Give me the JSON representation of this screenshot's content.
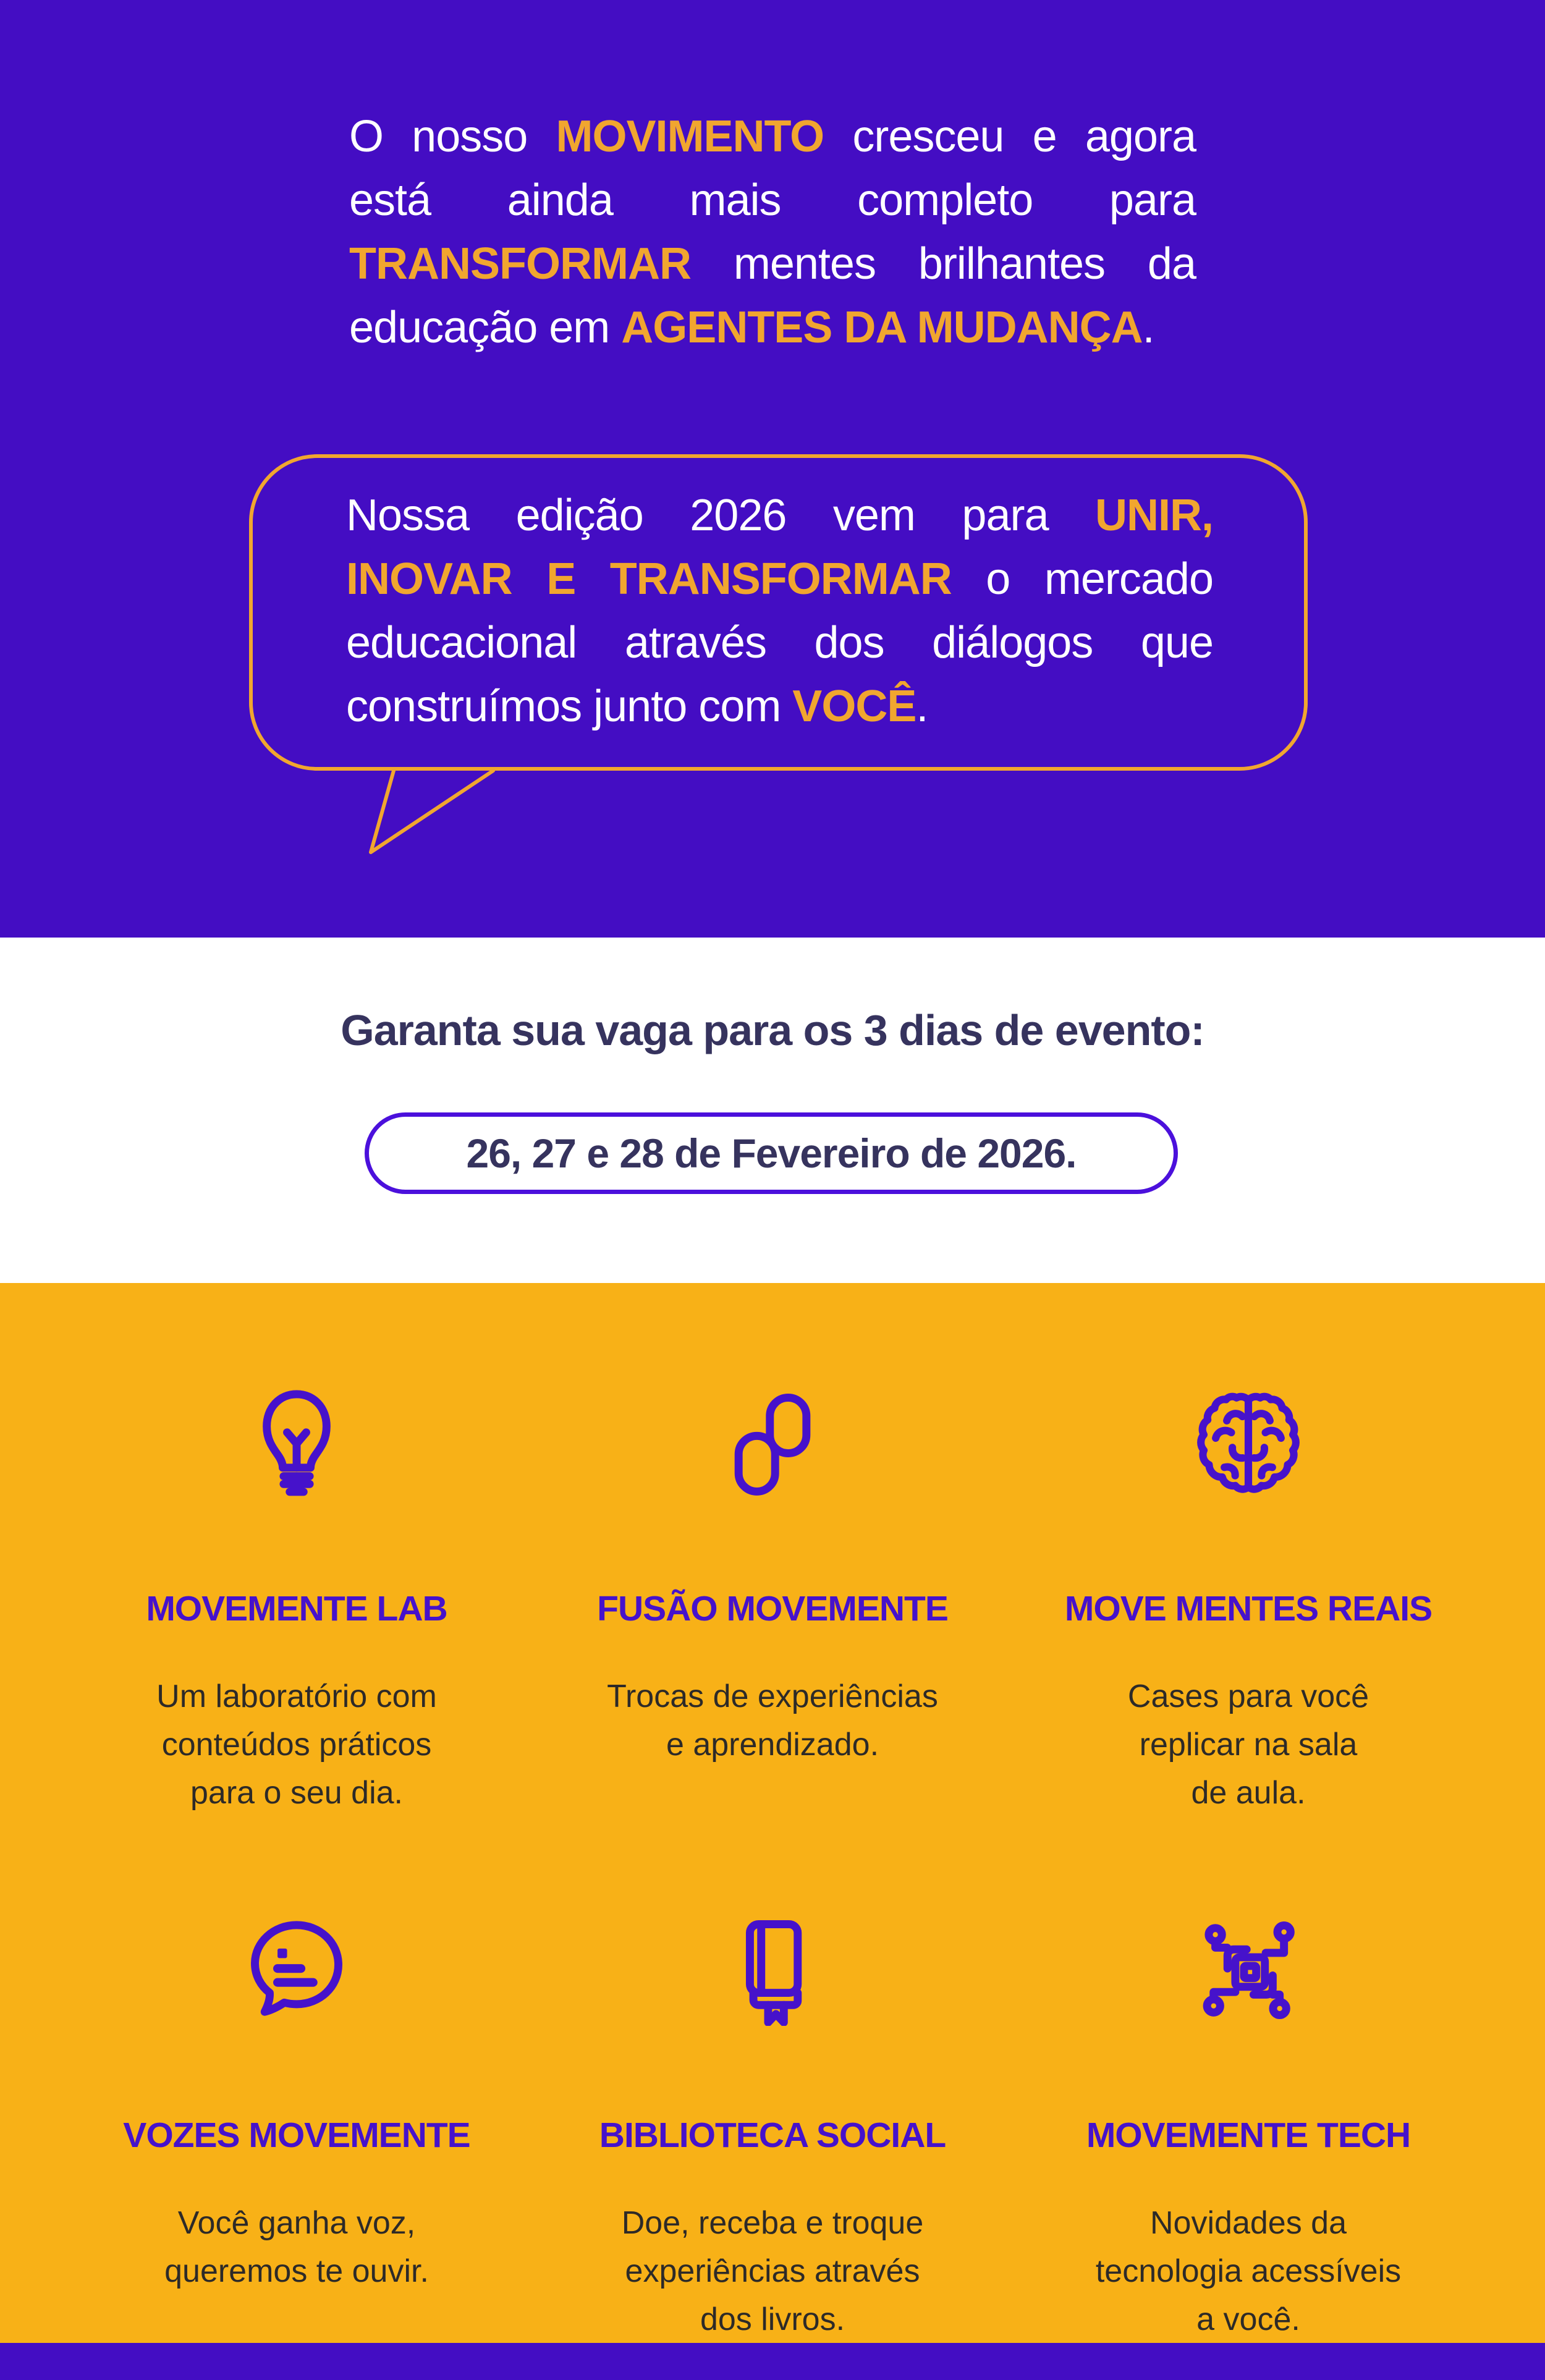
{
  "theme": {
    "purple": "#440dc3",
    "orange_bg": "#f8b117",
    "gold": "#f1a62f",
    "navy": "#36335e",
    "pill_border": "#4b10dc",
    "feature_purple": "#4612cb",
    "body_dark": "#2d2a28",
    "white": "#ffffff"
  },
  "hero": {
    "paragraph_lines": [
      {
        "justify": true,
        "segments": [
          {
            "t": "O nosso "
          },
          {
            "t": "MOVIMENTO",
            "hl": true
          },
          {
            "t": " cresceu e agora"
          }
        ]
      },
      {
        "justify": true,
        "segments": [
          {
            "t": "está ainda mais completo para"
          }
        ]
      },
      {
        "justify": true,
        "segments": [
          {
            "t": "TRANSFORMAR",
            "hl": true
          },
          {
            "t": " mentes brilhantes da"
          }
        ]
      },
      {
        "justify": false,
        "segments": [
          {
            "t": "educação em "
          },
          {
            "t": "AGENTES DA MUDANÇA",
            "hl": true
          },
          {
            "t": "."
          }
        ]
      }
    ],
    "bubble_lines": [
      {
        "justify": true,
        "segments": [
          {
            "t": "Nossa edição 2026 vem para "
          },
          {
            "t": "UNIR,",
            "hl": true
          }
        ]
      },
      {
        "justify": true,
        "segments": [
          {
            "t": "INOVAR E TRANSFORMAR",
            "hl": true
          },
          {
            "t": " o mercado"
          }
        ]
      },
      {
        "justify": true,
        "segments": [
          {
            "t": "educacional através dos diálogos que"
          }
        ]
      },
      {
        "justify": false,
        "segments": [
          {
            "t": "construímos junto com "
          },
          {
            "t": "VOCÊ",
            "hl": true
          },
          {
            "t": "."
          }
        ]
      }
    ]
  },
  "cta": {
    "title": "Garanta sua vaga para os 3 dias de evento:",
    "date_text": "26, 27 e 28 de Fevereiro de 2026."
  },
  "features": [
    {
      "icon": "lightbulb-icon",
      "title": "MOVEMENTE LAB",
      "body": [
        "Um laboratório com",
        "conteúdos práticos",
        "para o seu dia."
      ]
    },
    {
      "icon": "chain-links-icon",
      "title": "FUSÃO MOVEMENTE",
      "body": [
        "Trocas de experiências",
        "e aprendizado."
      ]
    },
    {
      "icon": "brain-icon",
      "title": "MOVE MENTES REAIS",
      "body": [
        "Cases para você",
        "replicar na sala",
        "de aula."
      ]
    },
    {
      "icon": "speech-bubble-icon",
      "title": "VOZES MOVEMENTE",
      "body": [
        "Você ganha voz,",
        "queremos te ouvir."
      ]
    },
    {
      "icon": "book-icon",
      "title": "BIBLIOTECA SOCIAL",
      "body": [
        "Doe, receba e troque",
        "experiências através",
        "dos livros."
      ]
    },
    {
      "icon": "circuit-chip-icon",
      "title": "MOVEMENTE TECH",
      "body": [
        "Novidades da",
        "tecnologia acessíveis",
        "a você."
      ]
    }
  ]
}
